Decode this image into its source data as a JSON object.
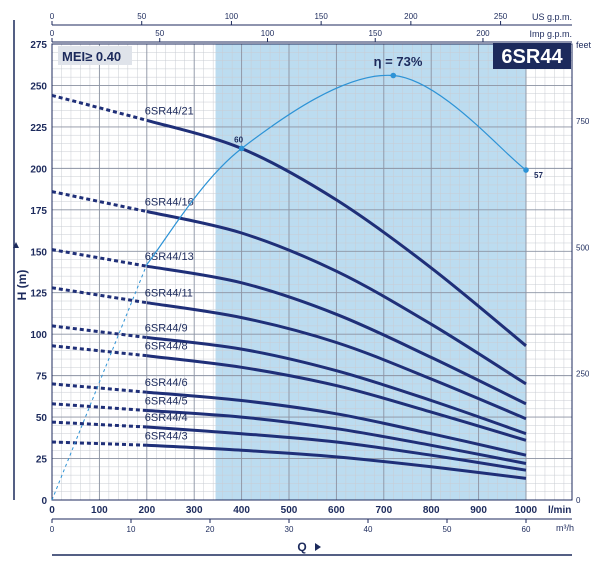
{
  "chart_data": {
    "type": "line",
    "title": "6SR44",
    "mei_label": "MEI≥ 0.40",
    "xlabel": "Q",
    "ylabel": "H (m)",
    "x_unit": "l/min",
    "xlim": [
      0,
      1000
    ],
    "ylim": [
      0,
      275
    ],
    "x_ticks": [
      "0",
      "100",
      "200",
      "300",
      "400",
      "500",
      "600",
      "700",
      "800",
      "900",
      "1000"
    ],
    "y_ticks": [
      "0",
      "25",
      "50",
      "75",
      "100",
      "125",
      "150",
      "175",
      "200",
      "225",
      "250",
      "275"
    ],
    "top_axis_1": {
      "unit": "US g.p.m.",
      "ticks": [
        "0",
        "50",
        "100",
        "150",
        "200",
        "250"
      ],
      "per_lmin": 0.264172
    },
    "top_axis_2": {
      "unit": "Imp g.p.m.",
      "ticks": [
        "0",
        "50",
        "100",
        "150",
        "200"
      ],
      "per_lmin": 0.219969
    },
    "bottom_axis_2": {
      "unit": "m³/h",
      "ticks": [
        "0",
        "10",
        "20",
        "30",
        "40",
        "50",
        "60"
      ],
      "per_lmin": 0.06
    },
    "right_axis": {
      "unit": "feet",
      "ticks": [
        "0",
        "250",
        "500",
        "750"
      ],
      "per_m": 3.28084
    },
    "shaded_range": [
      345,
      1000
    ],
    "efficiency": {
      "label": "η = 73%",
      "points": [
        [
          0,
          0
        ],
        [
          200,
          142
        ],
        [
          400,
          212
        ],
        [
          720,
          256
        ],
        [
          1000,
          199
        ]
      ],
      "solid_from": 200,
      "markers": [
        {
          "x": 400,
          "y": 212,
          "label": "60"
        },
        {
          "x": 720,
          "y": 256,
          "label": ""
        },
        {
          "x": 1000,
          "y": 199,
          "label": "57"
        }
      ]
    },
    "series": [
      {
        "name": "6SR44/21",
        "values": [
          [
            0,
            244
          ],
          [
            200,
            229
          ],
          [
            400,
            212
          ],
          [
            600,
            181
          ],
          [
            800,
            140
          ],
          [
            1000,
            93
          ]
        ]
      },
      {
        "name": "6SR44/16",
        "values": [
          [
            0,
            186
          ],
          [
            200,
            174
          ],
          [
            400,
            161
          ],
          [
            600,
            138
          ],
          [
            800,
            106
          ],
          [
            1000,
            70
          ]
        ]
      },
      {
        "name": "6SR44/13",
        "values": [
          [
            0,
            151
          ],
          [
            200,
            141
          ],
          [
            400,
            131
          ],
          [
            600,
            112
          ],
          [
            800,
            86
          ],
          [
            1000,
            58
          ]
        ]
      },
      {
        "name": "6SR44/11",
        "values": [
          [
            0,
            128
          ],
          [
            200,
            119
          ],
          [
            400,
            110
          ],
          [
            600,
            95
          ],
          [
            800,
            73
          ],
          [
            1000,
            49
          ]
        ]
      },
      {
        "name": "6SR44/9",
        "values": [
          [
            0,
            105
          ],
          [
            200,
            98
          ],
          [
            400,
            91
          ],
          [
            600,
            78
          ],
          [
            800,
            60
          ],
          [
            1000,
            40
          ]
        ]
      },
      {
        "name": "6SR44/8",
        "values": [
          [
            0,
            93
          ],
          [
            200,
            87
          ],
          [
            400,
            80
          ],
          [
            600,
            69
          ],
          [
            800,
            53
          ],
          [
            1000,
            36
          ]
        ]
      },
      {
        "name": "6SR44/6",
        "values": [
          [
            0,
            70
          ],
          [
            200,
            65
          ],
          [
            400,
            60
          ],
          [
            600,
            52
          ],
          [
            800,
            40
          ],
          [
            1000,
            27
          ]
        ]
      },
      {
        "name": "6SR44/5",
        "values": [
          [
            0,
            58
          ],
          [
            200,
            54
          ],
          [
            400,
            50
          ],
          [
            600,
            43
          ],
          [
            800,
            33
          ],
          [
            1000,
            22
          ]
        ]
      },
      {
        "name": "6SR44/4",
        "values": [
          [
            0,
            47
          ],
          [
            200,
            44
          ],
          [
            400,
            40
          ],
          [
            600,
            35
          ],
          [
            800,
            27
          ],
          [
            1000,
            18
          ]
        ]
      },
      {
        "name": "6SR44/3",
        "values": [
          [
            0,
            35
          ],
          [
            200,
            33
          ],
          [
            400,
            30
          ],
          [
            600,
            26
          ],
          [
            800,
            20
          ],
          [
            1000,
            13
          ]
        ]
      }
    ],
    "grid": true,
    "colors": {
      "curve": "#1f2f78",
      "efficiency": "#2d93d6",
      "shade": "#bcdcf0",
      "header_bg": "#1c2a5c"
    }
  }
}
